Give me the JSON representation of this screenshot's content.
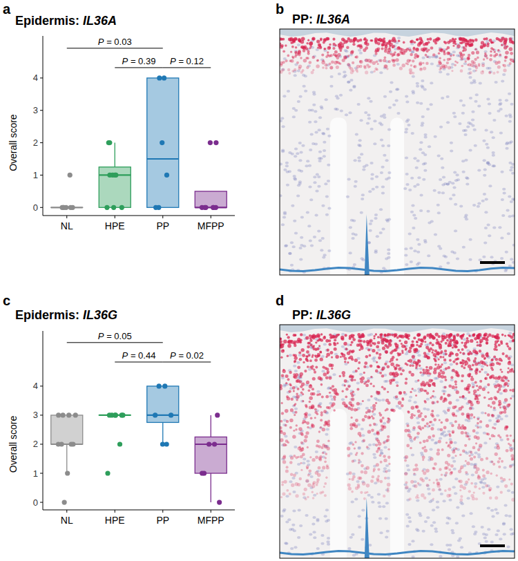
{
  "chart_data": [
    {
      "type": "box",
      "panel_label": "a",
      "title": "Epidermis: IL36A",
      "y_label": "Overall score",
      "categories": [
        "NL",
        "HPE",
        "PP",
        "MFPP"
      ],
      "colors": [
        "#8c8c8c",
        "#2e9e5b",
        "#1f78b4",
        "#7b2d8e"
      ],
      "boxes": [
        {
          "q1": 0,
          "median": 0,
          "q3": 0,
          "low": 0,
          "high": 0,
          "points": [
            0,
            0,
            0,
            0,
            0,
            0,
            1
          ]
        },
        {
          "q1": 0,
          "median": 1,
          "q3": 1.25,
          "low": 0,
          "high": 2,
          "points": [
            2,
            2,
            1,
            1,
            1,
            1,
            0,
            0,
            0
          ]
        },
        {
          "q1": 0,
          "median": 1.5,
          "q3": 4,
          "low": 0,
          "high": 4,
          "points": [
            4,
            4,
            2,
            1,
            0,
            0
          ]
        },
        {
          "q1": 0,
          "median": 0,
          "q3": 0.5,
          "low": 0,
          "high": 0.5,
          "points": [
            2,
            2,
            0,
            0,
            0,
            0,
            0,
            0
          ]
        }
      ],
      "comparisons": [
        {
          "from": "NL",
          "to": "PP",
          "y": 4.92,
          "label": "P = 0.03"
        },
        {
          "from": "HPE",
          "to": "PP",
          "y": 4.32,
          "label": "P = 0.39"
        },
        {
          "from": "PP",
          "to": "MFPP",
          "y": 4.32,
          "label": "P = 0.12"
        }
      ],
      "ylim": [
        -0.25,
        5.3
      ],
      "yticks": [
        0,
        1,
        2,
        3,
        4
      ]
    },
    {
      "type": "box",
      "panel_label": "c",
      "title": "Epidermis: IL36G",
      "y_label": "Overall score",
      "categories": [
        "NL",
        "HPE",
        "PP",
        "MFPP"
      ],
      "colors": [
        "#8c8c8c",
        "#2e9e5b",
        "#1f78b4",
        "#7b2d8e"
      ],
      "boxes": [
        {
          "q1": 2,
          "median": 2,
          "q3": 3,
          "low": 1,
          "high": 3,
          "points": [
            3,
            3,
            3,
            3,
            2,
            2,
            2,
            2,
            1,
            0
          ]
        },
        {
          "q1": 3,
          "median": 3,
          "q3": 3,
          "low": 3,
          "high": 3,
          "points": [
            3,
            3,
            3,
            3,
            3,
            3,
            2,
            1
          ]
        },
        {
          "q1": 2.75,
          "median": 3,
          "q3": 4,
          "low": 2,
          "high": 4,
          "points": [
            4,
            4,
            3,
            3,
            2,
            2
          ]
        },
        {
          "q1": 1,
          "median": 2,
          "q3": 2.25,
          "low": 0,
          "high": 3,
          "points": [
            3,
            2,
            2,
            1,
            1,
            0
          ]
        }
      ],
      "comparisons": [
        {
          "from": "NL",
          "to": "PP",
          "y": 5.5,
          "label": "P = 0.05"
        },
        {
          "from": "HPE",
          "to": "PP",
          "y": 4.83,
          "label": "P = 0.44"
        },
        {
          "from": "PP",
          "to": "MFPP",
          "y": 4.83,
          "label": "P = 0.02"
        }
      ],
      "ylim": [
        -0.26,
        5.9
      ],
      "yticks": [
        0,
        1,
        2,
        3,
        4
      ]
    }
  ],
  "images": [
    {
      "panel_label": "b",
      "title": "PP: IL36A"
    },
    {
      "panel_label": "d",
      "title": "PP: IL36G"
    }
  ]
}
